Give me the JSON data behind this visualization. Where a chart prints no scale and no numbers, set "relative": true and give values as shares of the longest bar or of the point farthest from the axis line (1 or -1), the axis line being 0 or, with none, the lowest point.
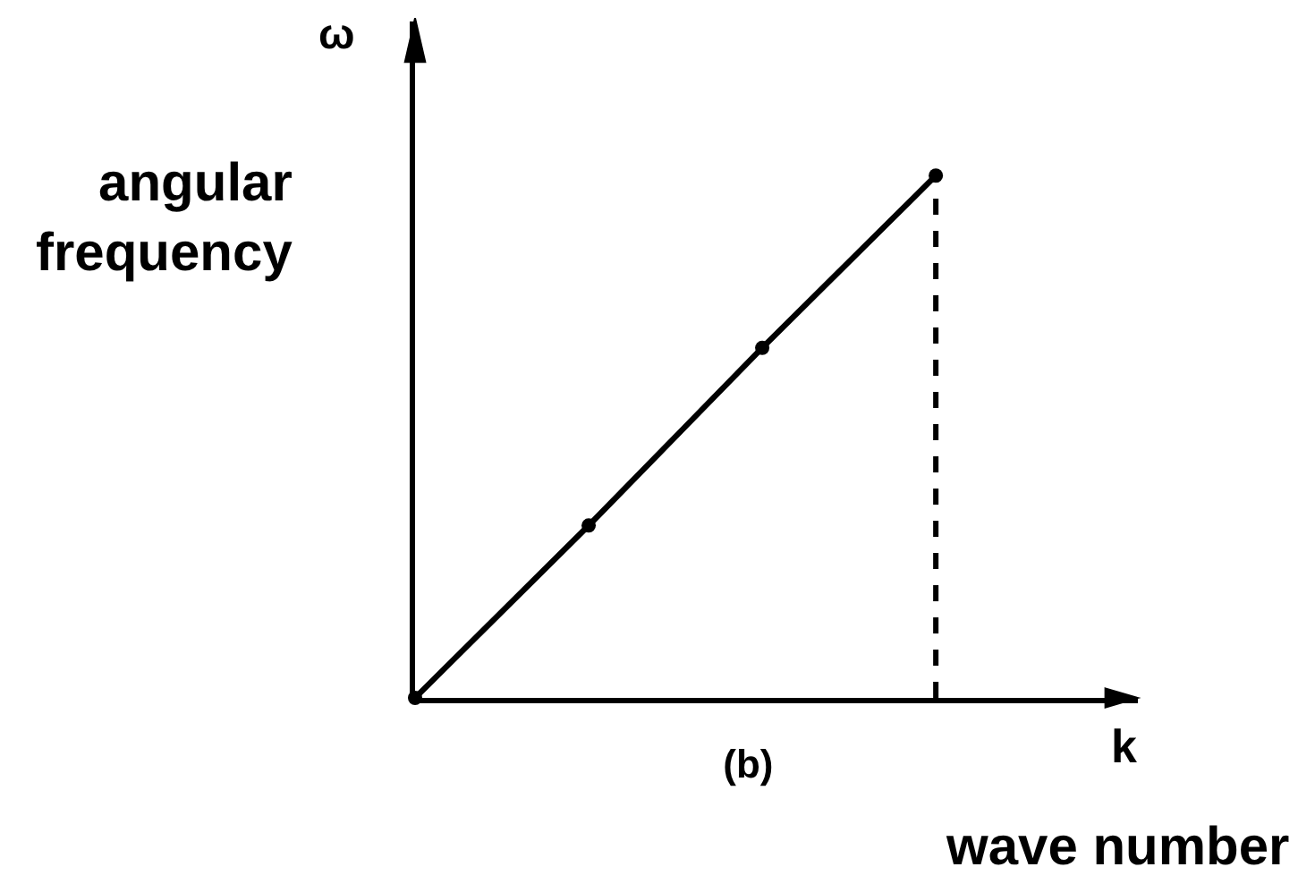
{
  "chart_data": {
    "type": "line",
    "title": "(b)",
    "xlabel": "k",
    "ylabel": "ω",
    "annotations": [
      "angular frequency",
      "wave number"
    ],
    "categories": [
      null,
      null,
      null,
      null
    ],
    "series": [
      {
        "color": "#000000",
        "values": [
          0,
          0.33,
          0.67,
          1
        ]
      }
    ],
    "relative": true,
    "marker": "circle",
    "line_style": "solid"
  }
}
